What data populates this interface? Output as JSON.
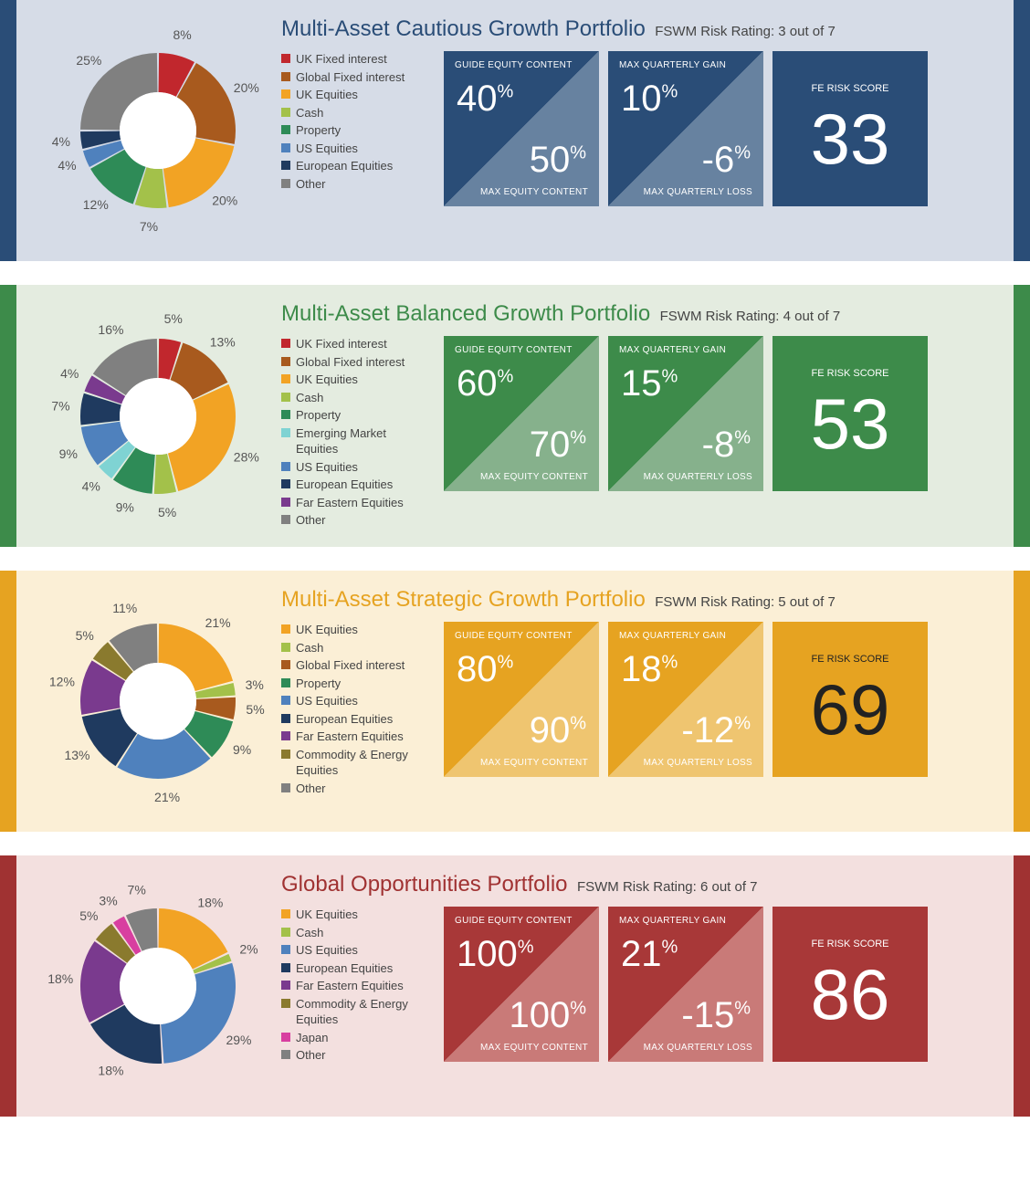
{
  "common": {
    "stat_labels": {
      "guide_equity": "GUIDE EQUITY CONTENT",
      "max_equity": "MAX EQUITY CONTENT",
      "max_gain": "MAX QUARTERLY GAIN",
      "max_loss": "MAX QUARTERLY LOSS",
      "fe_risk": "FE RISK SCORE"
    },
    "donut": {
      "outer_radius": 85,
      "inner_radius": 42,
      "gap_deg": 1.5,
      "label_offset": 22
    }
  },
  "portfolios": [
    {
      "id": "cautious",
      "title": "Multi-Asset Cautious Growth Portfolio",
      "rating": "FSWM Risk Rating: 3 out of 7",
      "bg_color": "#d6dce7",
      "accent_color": "#2a4d77",
      "title_color": "#2a4d77",
      "box_dark": "#2a4d77",
      "box_light": "#6782a0",
      "risk_text_color": "#ffffff",
      "slices": [
        {
          "label": "UK Fixed interest",
          "value": 8,
          "color": "#c1272d"
        },
        {
          "label": "Global Fixed interest",
          "value": 20,
          "color": "#a85a1e"
        },
        {
          "label": "UK Equities",
          "value": 20,
          "color": "#f2a324"
        },
        {
          "label": "Cash",
          "value": 7,
          "color": "#a3c14a"
        },
        {
          "label": "Property",
          "value": 12,
          "color": "#2e8b57"
        },
        {
          "label": "US Equities",
          "value": 4,
          "color": "#4f81bd"
        },
        {
          "label": "European Equities",
          "value": 4,
          "color": "#1f3a5f"
        },
        {
          "label": "Other",
          "value": 25,
          "color": "#808080"
        }
      ],
      "stats": {
        "guide_equity": "40",
        "max_equity": "50",
        "max_gain": "10",
        "max_loss": "-6",
        "risk_score": "33"
      }
    },
    {
      "id": "balanced",
      "title": "Multi-Asset Balanced Growth Portfolio",
      "rating": "FSWM Risk Rating: 4 out of 7",
      "bg_color": "#e4ece0",
      "accent_color": "#3d8b4a",
      "title_color": "#3d8b4a",
      "box_dark": "#3d8b4a",
      "box_light": "#86b18c",
      "risk_text_color": "#ffffff",
      "slices": [
        {
          "label": "UK Fixed interest",
          "value": 5,
          "color": "#c1272d"
        },
        {
          "label": "Global Fixed interest",
          "value": 13,
          "color": "#a85a1e"
        },
        {
          "label": "UK Equities",
          "value": 28,
          "color": "#f2a324"
        },
        {
          "label": "Cash",
          "value": 5,
          "color": "#a3c14a"
        },
        {
          "label": "Property",
          "value": 9,
          "color": "#2e8b57"
        },
        {
          "label": "Emerging Market Equities",
          "value": 4,
          "color": "#7fd3d3"
        },
        {
          "label": "US Equities",
          "value": 9,
          "color": "#4f81bd"
        },
        {
          "label": "European Equities",
          "value": 7,
          "color": "#1f3a5f"
        },
        {
          "label": "Far Eastern Equities",
          "value": 4,
          "color": "#7a3a8e"
        },
        {
          "label": "Other",
          "value": 16,
          "color": "#808080"
        }
      ],
      "stats": {
        "guide_equity": "60",
        "max_equity": "70",
        "max_gain": "15",
        "max_loss": "-8",
        "risk_score": "53"
      }
    },
    {
      "id": "strategic",
      "title": "Multi-Asset Strategic Growth Portfolio",
      "rating": "FSWM Risk Rating: 5 out of 7",
      "bg_color": "#fbefd6",
      "accent_color": "#e6a321",
      "title_color": "#e6a321",
      "box_dark": "#e6a321",
      "box_light": "#efc570",
      "risk_text_color": "#222222",
      "slices": [
        {
          "label": "UK Equities",
          "value": 21,
          "color": "#f2a324"
        },
        {
          "label": "Cash",
          "value": 3,
          "color": "#a3c14a"
        },
        {
          "label": "Global Fixed interest",
          "value": 5,
          "color": "#a85a1e"
        },
        {
          "label": "Property",
          "value": 9,
          "color": "#2e8b57"
        },
        {
          "label": "US Equities",
          "value": 21,
          "color": "#4f81bd"
        },
        {
          "label": "European Equities",
          "value": 13,
          "color": "#1f3a5f"
        },
        {
          "label": "Far Eastern Equities",
          "value": 12,
          "color": "#7a3a8e"
        },
        {
          "label": "Commodity & Energy Equities",
          "value": 5,
          "color": "#8a7a2e"
        },
        {
          "label": "Other",
          "value": 11,
          "color": "#808080"
        }
      ],
      "stats": {
        "guide_equity": "80",
        "max_equity": "90",
        "max_gain": "18",
        "max_loss": "-12",
        "risk_score": "69"
      }
    },
    {
      "id": "global",
      "title": "Global Opportunities Portfolio",
      "rating": "FSWM Risk Rating: 6 out of 7",
      "bg_color": "#f3e0df",
      "accent_color": "#a03232",
      "title_color": "#a03232",
      "box_dark": "#a83838",
      "box_light": "#c97a78",
      "risk_text_color": "#ffffff",
      "slices": [
        {
          "label": "UK Equities",
          "value": 18,
          "color": "#f2a324"
        },
        {
          "label": "Cash",
          "value": 2,
          "color": "#a3c14a"
        },
        {
          "label": "US Equities",
          "value": 29,
          "color": "#4f81bd"
        },
        {
          "label": "European Equities",
          "value": 18,
          "color": "#1f3a5f"
        },
        {
          "label": "Far Eastern Equities",
          "value": 18,
          "color": "#7a3a8e"
        },
        {
          "label": "Commodity & Energy Equities",
          "value": 5,
          "color": "#8a7a2e"
        },
        {
          "label": "Japan",
          "value": 3,
          "color": "#d83fa0"
        },
        {
          "label": "Other",
          "value": 7,
          "color": "#808080"
        }
      ],
      "stats": {
        "guide_equity": "100",
        "max_equity": "100",
        "max_gain": "21",
        "max_loss": "-15",
        "risk_score": "86"
      }
    }
  ]
}
